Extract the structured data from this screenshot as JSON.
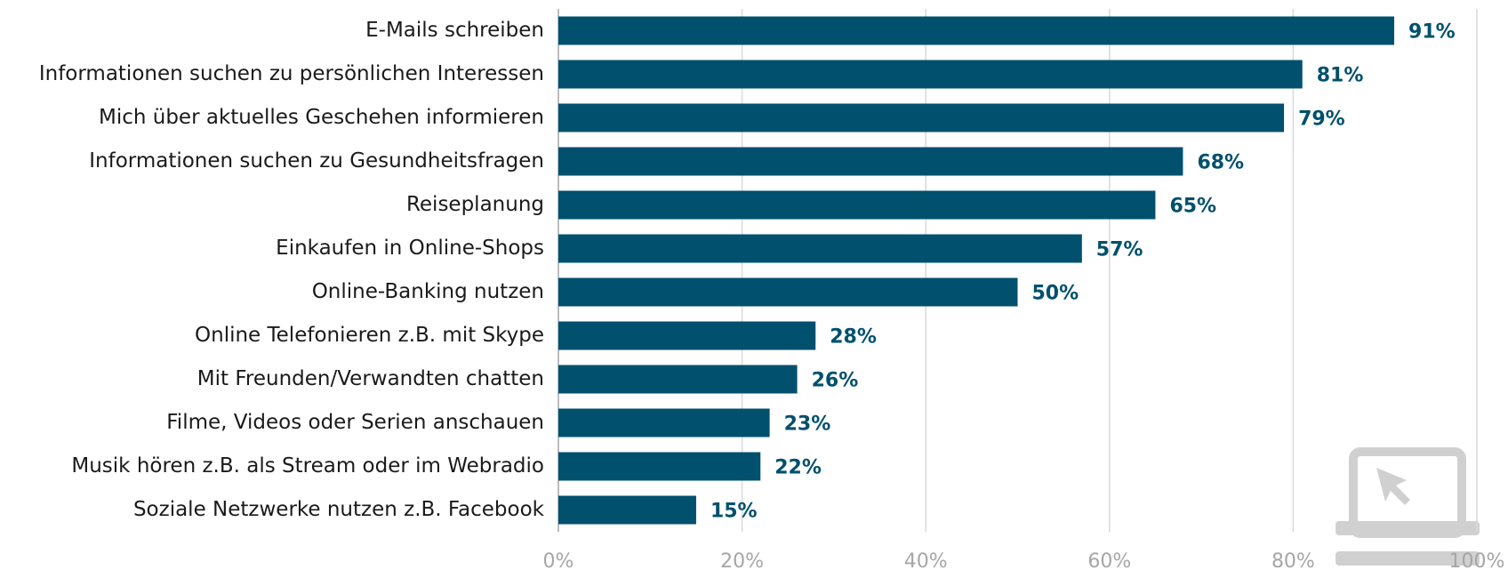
{
  "chart_data": {
    "type": "bar",
    "orientation": "horizontal",
    "categories": [
      "E-Mails schreiben",
      "Informationen suchen zu persönlichen Interessen",
      "Mich über aktuelles Geschehen informieren",
      "Informationen suchen zu Gesundheitsfragen",
      "Reiseplanung",
      "Einkaufen in Online-Shops",
      "Online-Banking nutzen",
      "Online Telefonieren z.B. mit Skype",
      "Mit Freunden/Verwandten chatten",
      "Filme, Videos oder Serien anschauen",
      "Musik hören z.B. als Stream oder im Webradio",
      "Soziale Netzwerke nutzen z.B. Facebook"
    ],
    "values": [
      91,
      81,
      79,
      68,
      65,
      57,
      50,
      28,
      26,
      23,
      22,
      15
    ],
    "value_labels": [
      "91%",
      "81%",
      "79%",
      "68%",
      "65%",
      "57%",
      "50%",
      "28%",
      "26%",
      "23%",
      "22%",
      "15%"
    ],
    "color": "#00506e",
    "xlim": [
      0,
      100
    ],
    "xticks": [
      {
        "value": 0,
        "label": "0%"
      },
      {
        "value": 20,
        "label": "20%"
      },
      {
        "value": 40,
        "label": "40%"
      },
      {
        "value": 60,
        "label": "60%"
      },
      {
        "value": 80,
        "label": "80%"
      },
      {
        "value": 100,
        "label": "100%"
      }
    ],
    "grid": true
  }
}
